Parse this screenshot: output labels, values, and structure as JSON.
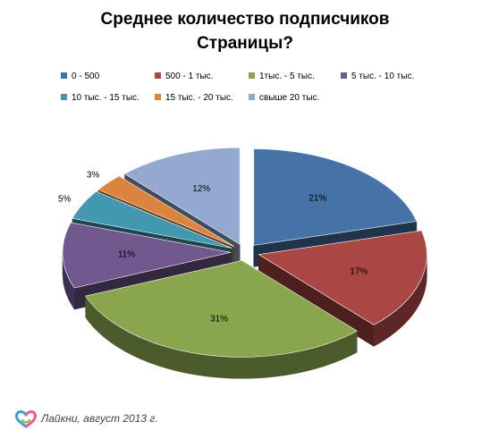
{
  "title_lines": [
    "Среднее количество подписчиков",
    "Страницы?"
  ],
  "chart_data": {
    "type": "pie",
    "title": "Среднее количество подписчиков Страницы?",
    "legend_position": "top",
    "slices": [
      {
        "label": "0 - 500",
        "value": 21,
        "value_label": "21%",
        "color": "#4572A7"
      },
      {
        "label": "500 - 1 тыс.",
        "value": 17,
        "value_label": "17%",
        "color": "#AA4643"
      },
      {
        "label": "1тыс. - 5 тыс.",
        "value": 31,
        "value_label": "31%",
        "color": "#89A54E"
      },
      {
        "label": "5 тыс. - 10 тыс.",
        "value": 11,
        "value_label": "11%",
        "color": "#71588F"
      },
      {
        "label": "10 тыс. - 15 тыс.",
        "value": 5,
        "value_label": "5%",
        "color": "#4198AF"
      },
      {
        "label": "15 тыс. - 20 тыс.",
        "value": 3,
        "value_label": "3%",
        "color": "#DB843D"
      },
      {
        "label": "свыше 20 тыс.",
        "value": 12,
        "value_label": "12%",
        "color": "#93A9CF"
      }
    ]
  },
  "footer": {
    "text": "Лайкни, август 2013 г."
  }
}
